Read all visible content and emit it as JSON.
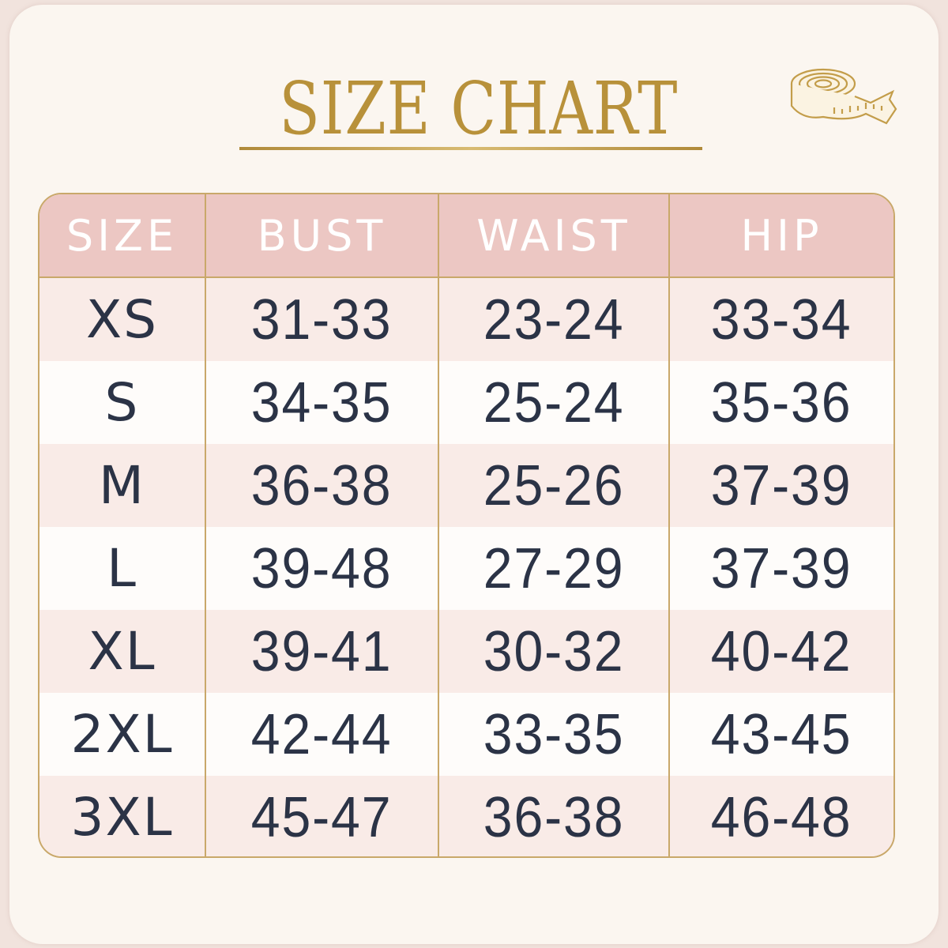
{
  "title": "SIZE CHART",
  "colors": {
    "gold": "#b8913a",
    "header_bg": "#ecc7c3",
    "row_pink": "#f9ebe7",
    "row_white": "#fefcfa",
    "text": "#2b3346"
  },
  "icon": "measuring-tape-icon",
  "table": {
    "headers": [
      "SIZE",
      "BUST",
      "WAIST",
      "HIP"
    ],
    "rows": [
      [
        "XS",
        "31-33",
        "23-24",
        "33-34"
      ],
      [
        "S",
        "34-35",
        "25-24",
        "35-36"
      ],
      [
        "M",
        "36-38",
        "25-26",
        "37-39"
      ],
      [
        "L",
        "39-48",
        "27-29",
        "37-39"
      ],
      [
        "XL",
        "39-41",
        "30-32",
        "40-42"
      ],
      [
        "2XL",
        "42-44",
        "33-35",
        "43-45"
      ],
      [
        "3XL",
        "45-47",
        "36-38",
        "46-48"
      ]
    ]
  }
}
